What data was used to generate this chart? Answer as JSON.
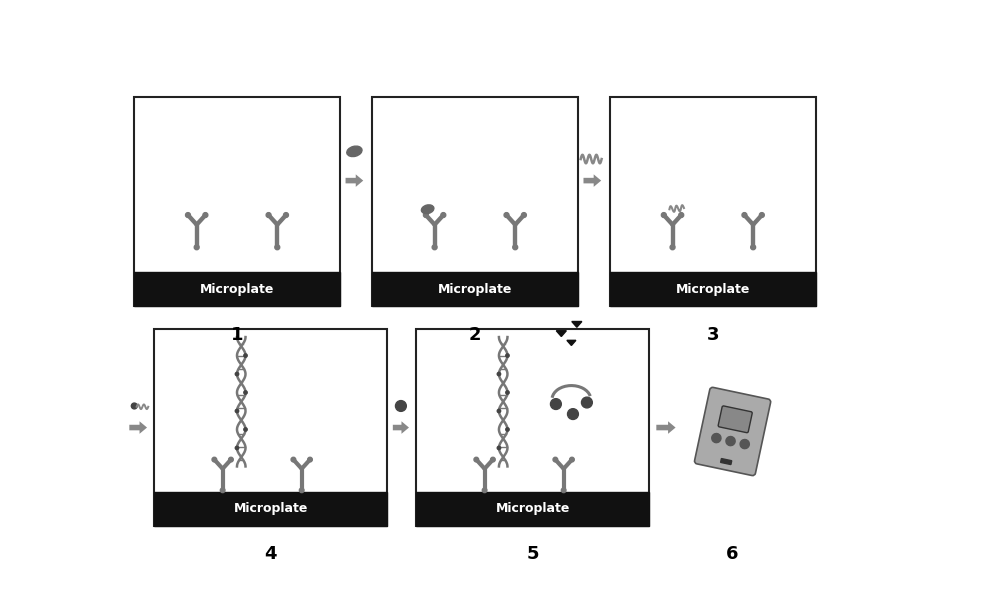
{
  "bg_color": "#ffffff",
  "box_fill": "#ffffff",
  "box_edge": "#222222",
  "black_bar_color": "#111111",
  "microplate_text": "Microplate",
  "microplate_text_color": "#ffffff",
  "microplate_text_size": 9,
  "arrow_color": "#888888",
  "antibody_color": "#777777",
  "dark_dot_color": "#444444",
  "step_label_size": 13,
  "figure_width": 10.0,
  "figure_height": 6.08
}
